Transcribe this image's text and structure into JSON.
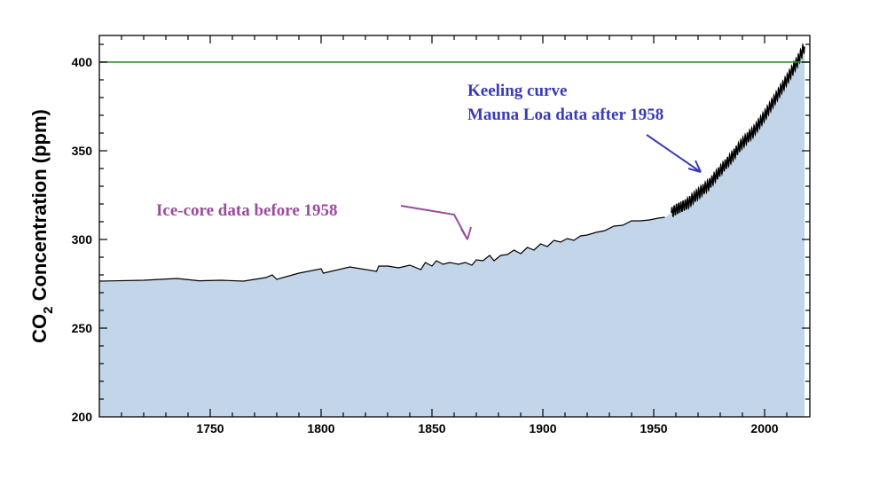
{
  "chart_data": {
    "type": "area",
    "title": "",
    "xlabel": "",
    "ylabel": {
      "prefix": "CO",
      "subscript": "2",
      "suffix": " Concentration (ppm)"
    },
    "xlim": [
      1700,
      2020
    ],
    "ylim": [
      200,
      415
    ],
    "xticks": [
      1750,
      1800,
      1850,
      1900,
      1950,
      2000
    ],
    "yticks": [
      200,
      250,
      300,
      350,
      400
    ],
    "grid": false,
    "colors": {
      "fill": "#c3d6e9",
      "line": "#000000",
      "reference_line": "#2e8b2e",
      "annotation_ice": "#9b4a9e",
      "annotation_keeling": "#3a3ab8"
    },
    "reference_line": {
      "y": 400
    },
    "series": [
      {
        "x": [
          1700,
          1720,
          1735,
          1745,
          1755,
          1765,
          1775,
          1778,
          1780,
          1790,
          1800,
          1801,
          1813,
          1825,
          1826,
          1830,
          1835,
          1840,
          1845,
          1847,
          1850,
          1852,
          1855,
          1858,
          1862,
          1865,
          1868,
          1870,
          1873,
          1876,
          1878,
          1881,
          1884,
          1887,
          1890,
          1893,
          1896,
          1899,
          1902,
          1905,
          1908,
          1911,
          1914,
          1917,
          1920,
          1924,
          1928,
          1932,
          1936,
          1940,
          1944,
          1948,
          1952,
          1955
        ],
        "y": [
          276.5,
          277,
          278,
          276.7,
          277,
          276.5,
          278.5,
          280,
          277.5,
          281,
          283.5,
          281,
          284.5,
          282,
          285,
          285,
          284,
          285.5,
          283,
          287,
          285,
          288,
          286,
          287,
          286,
          287,
          285.5,
          288.5,
          288,
          291,
          288,
          291,
          291.5,
          294,
          292,
          295.5,
          294,
          297.5,
          296,
          299.5,
          298.5,
          300.5,
          299.5,
          302,
          302.5,
          304,
          305,
          307.5,
          308,
          310.5,
          310.5,
          311,
          312,
          312.5
        ]
      },
      {
        "x": [
          1958,
          1960,
          1965,
          1970,
          1975,
          1980,
          1985,
          1990,
          1995,
          2000,
          2005,
          2010,
          2015,
          2018
        ],
        "y": [
          315,
          316.9,
          320,
          325.7,
          331.1,
          338.8,
          346.1,
          354.4,
          360.8,
          369.7,
          379.8,
          389.9,
          400.8,
          408.7
        ],
        "seasonal_amplitude_ppm": 6
      }
    ],
    "annotations": [
      {
        "lines": [
          "Ice-core data before 1958"
        ]
      },
      {
        "lines": [
          "Keeling curve",
          "Mauna Loa data after 1958"
        ]
      }
    ]
  }
}
